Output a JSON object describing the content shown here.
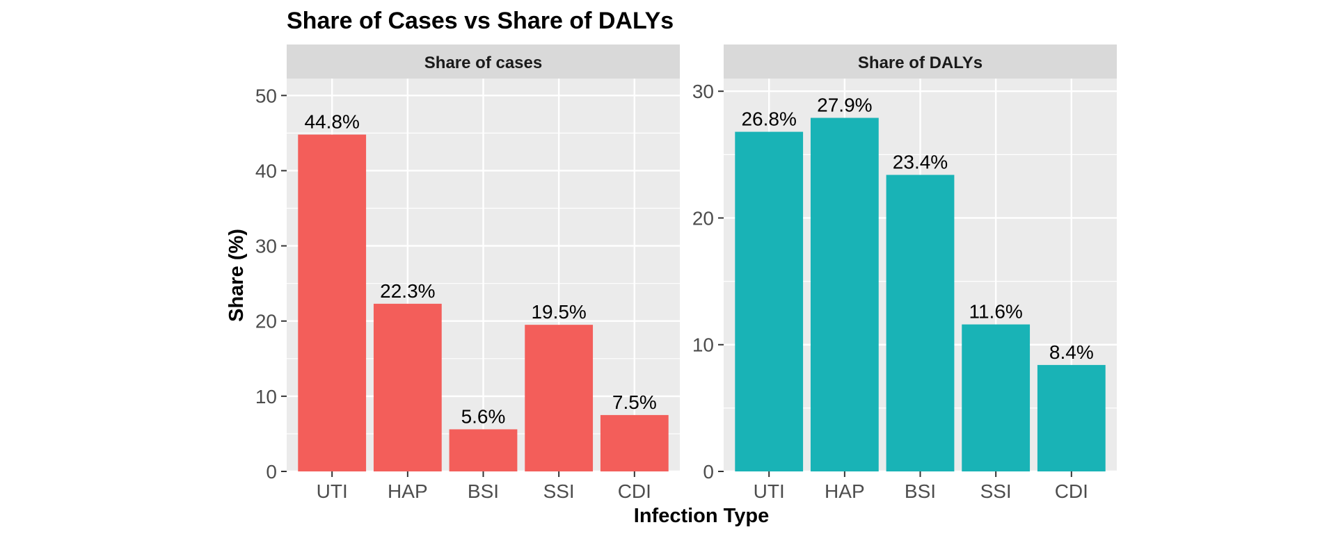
{
  "chart_data": {
    "title": "Share of Cases vs Share of DALYs",
    "xlabel": "Infection Type",
    "ylabel": "Share (%)",
    "type": "bar",
    "grid": true,
    "panels": [
      {
        "facet": "Share of cases",
        "color": "#F35E5A",
        "categories": [
          "UTI",
          "HAP",
          "BSI",
          "SSI",
          "CDI"
        ],
        "values": [
          44.8,
          22.3,
          5.6,
          19.5,
          7.5
        ],
        "labels": [
          "44.8%",
          "22.3%",
          "5.6%",
          "19.5%",
          "7.5%"
        ],
        "ylim": [
          0,
          52.25
        ],
        "yticks": [
          0,
          10,
          20,
          30,
          40,
          50
        ],
        "ytick_labels": [
          "0",
          "10",
          "20",
          "30",
          "40",
          "50"
        ]
      },
      {
        "facet": "Share of DALYs",
        "color": "#19B3B6",
        "categories": [
          "UTI",
          "HAP",
          "BSI",
          "SSI",
          "CDI"
        ],
        "values": [
          26.8,
          27.9,
          23.4,
          11.6,
          8.4
        ],
        "labels": [
          "26.8%",
          "27.9%",
          "23.4%",
          "11.6%",
          "8.4%"
        ],
        "ylim": [
          0,
          31.0
        ],
        "yticks": [
          0,
          10,
          20,
          30
        ],
        "ytick_labels": [
          "0",
          "10",
          "20",
          "30"
        ]
      }
    ]
  }
}
